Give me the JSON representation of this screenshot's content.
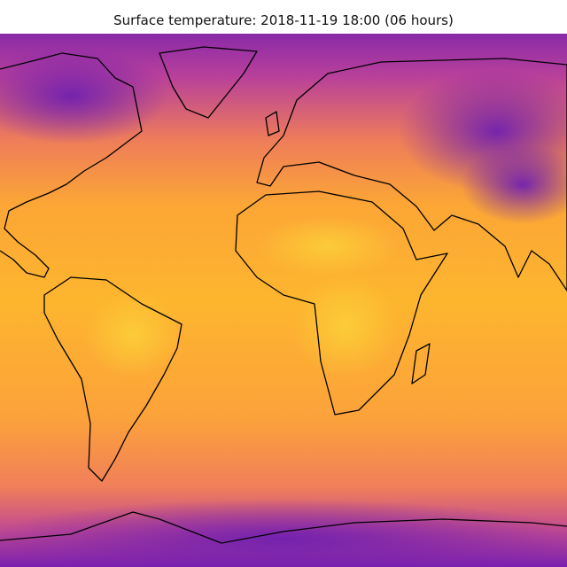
{
  "title": "Surface temperature: 2018-11-19 18:00 (06 hours)"
}
